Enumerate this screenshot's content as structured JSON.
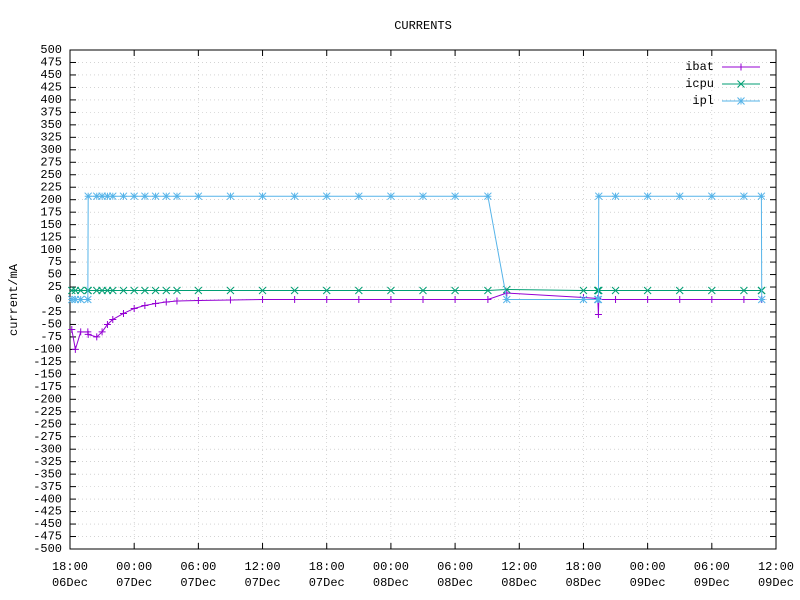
{
  "chart_data": {
    "type": "line",
    "title": "CURRENTS",
    "y_label": "current/mA",
    "x": [
      "06Dec 18:10",
      "06Dec 18:30",
      "06Dec 19:00",
      "06Dec 19:40",
      "06Dec 19:42",
      "06Dec 20:30",
      "06Dec 21:00",
      "06Dec 21:30",
      "06Dec 22:00",
      "06Dec 23:00",
      "07Dec 00:00",
      "07Dec 01:00",
      "07Dec 02:00",
      "07Dec 03:00",
      "07Dec 04:00",
      "07Dec 06:00",
      "07Dec 09:00",
      "07Dec 12:00",
      "07Dec 15:00",
      "07Dec 18:00",
      "07Dec 21:00",
      "08Dec 00:00",
      "08Dec 03:00",
      "08Dec 06:00",
      "08Dec 09:04",
      "08Dec 10:50",
      "08Dec 18:00",
      "08Dec 19:20",
      "08Dec 19:24",
      "08Dec 19:26",
      "08Dec 21:00",
      "09Dec 00:00",
      "09Dec 03:00",
      "09Dec 06:00",
      "09Dec 09:00",
      "09Dec 10:38",
      "09Dec 10:40"
    ],
    "series": [
      {
        "name": "ibat",
        "color": "#9400d3",
        "marker": "plus",
        "values": [
          -60,
          -100,
          -65,
          -65,
          -70,
          -75,
          -65,
          -50,
          -40,
          -28,
          -18,
          -12,
          -8,
          -5,
          -3,
          -2,
          -1,
          0,
          0,
          0,
          0,
          0,
          0,
          0,
          0,
          13,
          4,
          2,
          -30,
          0,
          0,
          0,
          0,
          0,
          0,
          0,
          0
        ]
      },
      {
        "name": "icpu",
        "color": "#009e73",
        "marker": "cross",
        "values": [
          18,
          18,
          18,
          18,
          18,
          18,
          18,
          18,
          18,
          18,
          18,
          18,
          18,
          18,
          18,
          18,
          18,
          18,
          18,
          18,
          18,
          18,
          18,
          18,
          18,
          20,
          18,
          18,
          18,
          18,
          18,
          18,
          18,
          18,
          18,
          18,
          18
        ]
      },
      {
        "name": "ipl",
        "color": "#56b4e9",
        "marker": "star",
        "values": [
          0,
          0,
          0,
          0,
          207,
          207,
          207,
          207,
          207,
          207,
          207,
          207,
          207,
          207,
          207,
          207,
          207,
          207,
          207,
          207,
          207,
          207,
          207,
          207,
          207,
          0,
          0,
          0,
          0,
          207,
          207,
          207,
          207,
          207,
          207,
          207,
          0
        ]
      }
    ],
    "xlim": [
      "06Dec 18:00",
      "09Dec 12:00"
    ],
    "xticks": [
      {
        "value": "06Dec 18:00",
        "label": [
          "18:00",
          "06Dec"
        ]
      },
      {
        "value": "07Dec 00:00",
        "label": [
          "00:00",
          "07Dec"
        ]
      },
      {
        "value": "07Dec 06:00",
        "label": [
          "06:00",
          "07Dec"
        ]
      },
      {
        "value": "07Dec 12:00",
        "label": [
          "12:00",
          "07Dec"
        ]
      },
      {
        "value": "07Dec 18:00",
        "label": [
          "18:00",
          "07Dec"
        ]
      },
      {
        "value": "08Dec 00:00",
        "label": [
          "00:00",
          "08Dec"
        ]
      },
      {
        "value": "08Dec 06:00",
        "label": [
          "06:00",
          "08Dec"
        ]
      },
      {
        "value": "08Dec 12:00",
        "label": [
          "12:00",
          "08Dec"
        ]
      },
      {
        "value": "08Dec 18:00",
        "label": [
          "18:00",
          "08Dec"
        ]
      },
      {
        "value": "09Dec 00:00",
        "label": [
          "00:00",
          "09Dec"
        ]
      },
      {
        "value": "09Dec 06:00",
        "label": [
          "06:00",
          "09Dec"
        ]
      },
      {
        "value": "09Dec 12:00",
        "label": [
          "12:00",
          "09Dec"
        ]
      }
    ],
    "ylim": [
      -500,
      500
    ],
    "yticks": [
      -500,
      -475,
      -450,
      -425,
      -400,
      -375,
      -350,
      -325,
      -300,
      -275,
      -250,
      -225,
      -200,
      -175,
      -150,
      -125,
      -100,
      -75,
      -50,
      -25,
      0,
      25,
      50,
      75,
      100,
      125,
      150,
      175,
      200,
      225,
      250,
      275,
      300,
      325,
      350,
      375,
      400,
      425,
      450,
      475,
      500
    ],
    "grid": true,
    "legend": "top-right"
  }
}
